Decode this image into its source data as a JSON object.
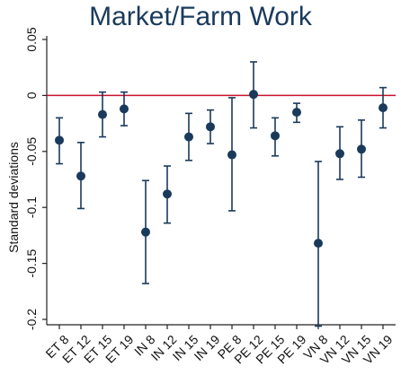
{
  "chart_data": {
    "type": "scatter",
    "title": "Market/Farm Work",
    "ylabel": "Standard deviations",
    "xlabel": "",
    "ylim": [
      -0.2,
      0.05
    ],
    "yticks": [
      0.05,
      0,
      -0.05,
      -0.1,
      -0.15,
      -0.2
    ],
    "ytick_labels": [
      "0.05",
      "0",
      "-0.05",
      "-0.1",
      "-0.15",
      "-0.2"
    ],
    "reference_line": {
      "y": 0,
      "color": "#c8102e"
    },
    "marker_color": "#1a3a5c",
    "grid": false,
    "categories": [
      "ET 8",
      "ET 12",
      "ET 15",
      "ET 19",
      "IN 8",
      "IN 12",
      "IN 15",
      "IN 19",
      "PE 8",
      "PE 12",
      "PE 15",
      "PE 19",
      "VN 8",
      "VN 12",
      "VN 15",
      "VN 19"
    ],
    "values": [
      -0.04,
      -0.072,
      -0.017,
      -0.012,
      -0.122,
      -0.088,
      -0.037,
      -0.028,
      -0.053,
      0.001,
      -0.036,
      -0.015,
      -0.132,
      -0.052,
      -0.048,
      -0.011
    ],
    "ci_low": [
      -0.061,
      -0.101,
      -0.037,
      -0.027,
      -0.168,
      -0.114,
      -0.058,
      -0.043,
      -0.103,
      -0.029,
      -0.054,
      -0.024,
      -0.206,
      -0.075,
      -0.073,
      -0.029
    ],
    "ci_high": [
      -0.02,
      -0.042,
      0.003,
      0.003,
      -0.076,
      -0.063,
      -0.016,
      -0.013,
      -0.002,
      0.03,
      -0.02,
      -0.007,
      -0.059,
      -0.028,
      -0.022,
      0.007
    ]
  }
}
